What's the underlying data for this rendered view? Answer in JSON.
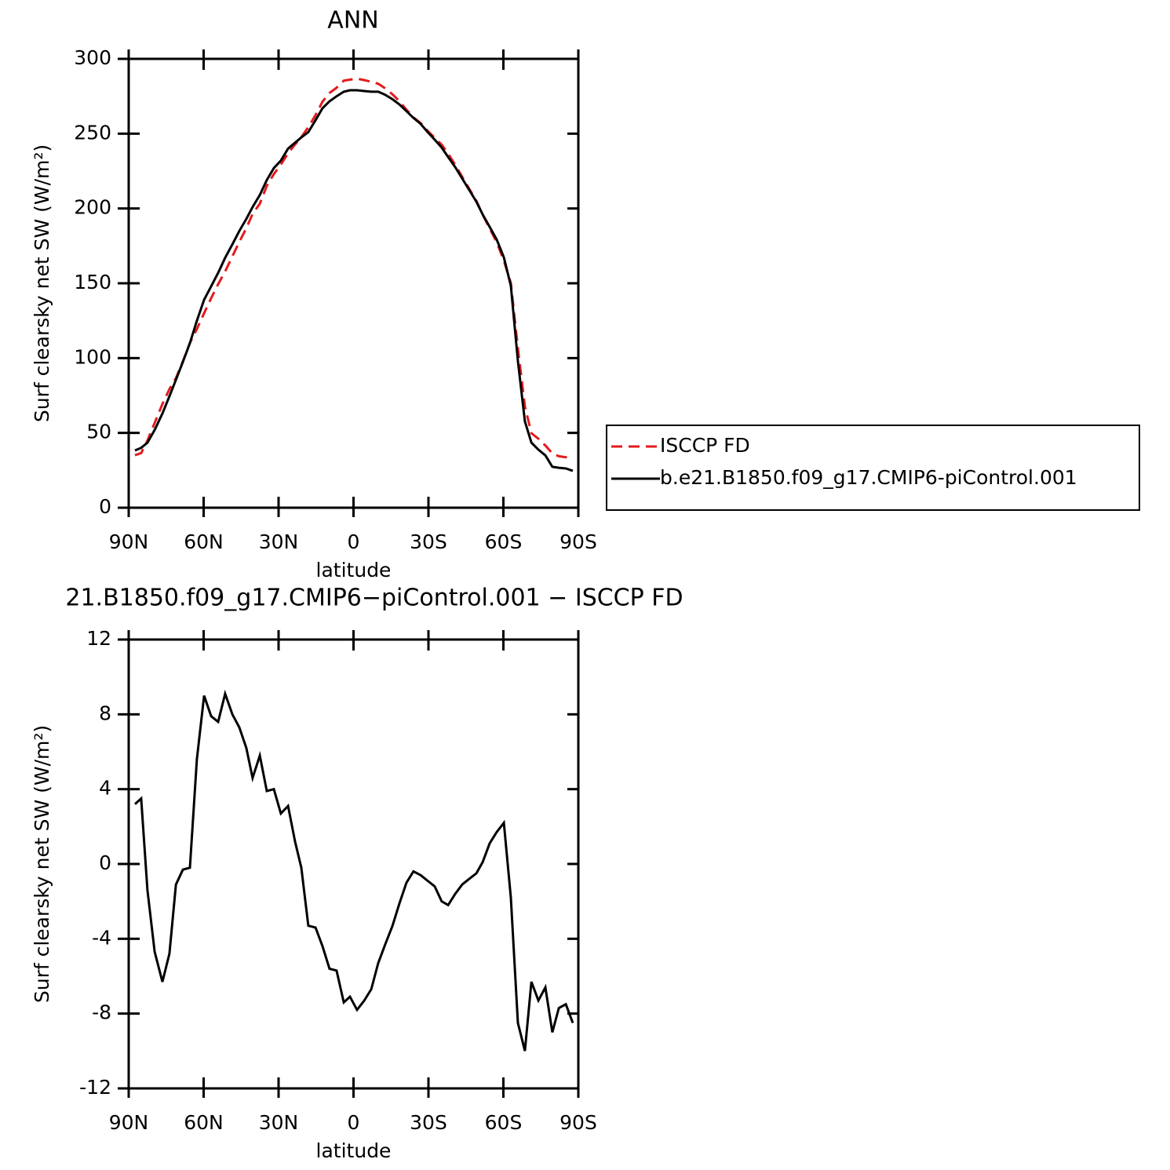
{
  "chart_data": [
    {
      "type": "line",
      "title": "ANN",
      "x_label": "latitude",
      "y_label": "Surf clearsky net SW (W/m²)",
      "xlim": [
        90,
        -90
      ],
      "xticks": [
        {
          "value": 90,
          "label": "90N"
        },
        {
          "value": 60,
          "label": "60N"
        },
        {
          "value": 30,
          "label": "30N"
        },
        0,
        {
          "value": -30,
          "label": "30S"
        },
        {
          "value": -60,
          "label": "60S"
        },
        {
          "value": -90,
          "label": "90S"
        }
      ],
      "ylim": [
        0,
        300
      ],
      "yticks": [
        0,
        50,
        100,
        150,
        200,
        250,
        300
      ],
      "legend": "right",
      "x": [
        87.5,
        85.0,
        82.5,
        79.6,
        76.5,
        73.7,
        71.1,
        68.3,
        65.5,
        62.7,
        59.8,
        57.0,
        54.2,
        51.4,
        48.5,
        45.7,
        42.9,
        40.4,
        37.5,
        34.7,
        31.9,
        29.1,
        26.2,
        23.4,
        20.9,
        18.1,
        15.2,
        12.4,
        9.6,
        6.8,
        3.9,
        1.4,
        -1.4,
        -4.3,
        -7.1,
        -9.9,
        -12.7,
        -15.6,
        -18.4,
        -21.2,
        -24.0,
        -26.9,
        -29.7,
        -32.5,
        -35.3,
        -37.9,
        -40.7,
        -43.5,
        -46.3,
        -49.2,
        -51.7,
        -54.5,
        -57.3,
        -60.2,
        -63.0,
        -65.8,
        -68.6,
        -71.2,
        -74.0,
        -76.8,
        -79.6,
        -82.2,
        -85.0,
        -87.8
      ],
      "series": [
        {
          "name": "ISCCP FD",
          "color": "#e41a1c",
          "dashed": true,
          "values": [
            35.1,
            36.5,
            44.9,
            56.7,
            69.3,
            79.3,
            86.6,
            97.8,
            110.2,
            119.4,
            130,
            140.1,
            149.4,
            157.9,
            168,
            177.7,
            186.8,
            196.4,
            203.2,
            215.1,
            223,
            229.3,
            236.9,
            242.8,
            247.7,
            254.3,
            262.4,
            271.4,
            277.2,
            280.7,
            285.4,
            286.1,
            286.8,
            285.8,
            284.7,
            283.3,
            280.3,
            276.3,
            271.6,
            266,
            260.9,
            257.1,
            251.9,
            247.2,
            242.7,
            236.6,
            229.2,
            221.1,
            213.2,
            205,
            195.9,
            186.6,
            177.6,
            165.1,
            150.2,
            106.5,
            67.7,
            49.8,
            46.1,
            41.6,
            36.3,
            34.4,
            33.7,
            33.1
          ]
        },
        {
          "name": "b.e21.B1850.f09_g17.CMIP6-piControl.001",
          "color": "#000000",
          "dashed": false,
          "values": [
            38.3,
            40,
            43.5,
            52,
            63,
            74.5,
            85.5,
            97.5,
            110,
            125,
            139,
            148,
            157,
            167,
            176,
            185,
            193,
            201,
            209,
            219,
            227,
            232,
            240,
            244,
            247.5,
            251,
            259,
            267,
            271.6,
            275,
            278,
            279,
            279,
            278.5,
            278,
            278,
            276,
            273,
            269.5,
            265,
            260.5,
            256.5,
            251,
            246,
            240.7,
            234.4,
            227.6,
            220,
            212.4,
            204.5,
            196,
            187.7,
            179.3,
            167.3,
            148.4,
            98,
            57.7,
            43.5,
            38.8,
            35,
            27.3,
            26.7,
            26.2,
            24.6
          ]
        }
      ]
    },
    {
      "type": "line",
      "title": "21.B1850.f09_g17.CMIP6−piControl.001 − ISCCP FD",
      "x_label": "latitude",
      "y_label": "Surf clearsky net SW (W/m²)",
      "xlim": [
        90,
        -90
      ],
      "xticks": [
        {
          "value": 90,
          "label": "90N"
        },
        {
          "value": 60,
          "label": "60N"
        },
        {
          "value": 30,
          "label": "30N"
        },
        0,
        {
          "value": -30,
          "label": "30S"
        },
        {
          "value": -60,
          "label": "60S"
        },
        {
          "value": -90,
          "label": "90S"
        }
      ],
      "ylim": [
        -12,
        12
      ],
      "yticks": [
        -12,
        -8,
        -4,
        0,
        4,
        8,
        12
      ],
      "color": "#000000",
      "x": [
        87.5,
        85.0,
        82.5,
        79.6,
        76.5,
        73.7,
        71.1,
        68.3,
        65.5,
        62.7,
        59.8,
        57.0,
        54.2,
        51.4,
        48.5,
        45.7,
        42.9,
        40.4,
        37.5,
        34.7,
        31.9,
        29.1,
        26.2,
        23.4,
        20.9,
        18.1,
        15.2,
        12.4,
        9.6,
        6.8,
        3.9,
        1.4,
        -1.4,
        -4.3,
        -7.1,
        -9.9,
        -12.7,
        -15.6,
        -18.4,
        -21.2,
        -24.0,
        -26.9,
        -29.7,
        -32.5,
        -35.3,
        -37.9,
        -40.7,
        -43.5,
        -46.3,
        -49.2,
        -51.7,
        -54.5,
        -57.3,
        -60.2,
        -63.0,
        -65.8,
        -68.6,
        -71.2,
        -74.0,
        -76.8,
        -79.6,
        -82.2,
        -85.0,
        -87.8
      ],
      "values": [
        3.2,
        3.5,
        -1.4,
        -4.7,
        -6.3,
        -4.8,
        -1.1,
        -0.3,
        -0.2,
        5.6,
        9.0,
        7.9,
        7.6,
        9.1,
        8.0,
        7.3,
        6.2,
        4.6,
        5.8,
        3.9,
        4.0,
        2.7,
        3.1,
        1.2,
        -0.2,
        -3.3,
        -3.4,
        -4.4,
        -5.6,
        -5.7,
        -7.4,
        -7.1,
        -7.8,
        -7.3,
        -6.7,
        -5.3,
        -4.3,
        -3.3,
        -2.1,
        -1.0,
        -0.4,
        -0.6,
        -0.9,
        -1.2,
        -2.0,
        -2.2,
        -1.6,
        -1.1,
        -0.8,
        -0.5,
        0.1,
        1.1,
        1.7,
        2.2,
        -1.8,
        -8.5,
        -10.0,
        -6.3,
        -7.3,
        -6.6,
        -9.0,
        -7.7,
        -7.5,
        -8.5
      ]
    }
  ]
}
